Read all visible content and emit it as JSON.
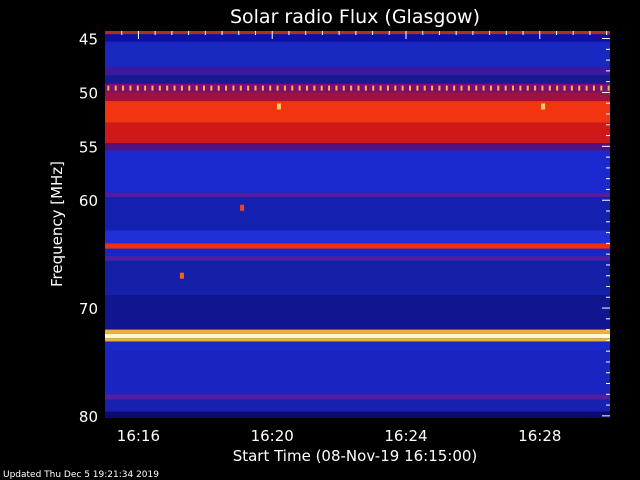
{
  "chart_data": {
    "type": "heatmap",
    "title": "Solar radio Flux (Glasgow)",
    "ylabel": "Frequency [MHz]",
    "xlabel": "Start Time (08-Nov-19 16:15:00)",
    "footer": "Updated Thu Dec  5 19:21:34 2019",
    "x_range_minutes": [
      0,
      15.1
    ],
    "y_range_mhz": [
      44.3,
      80.2
    ],
    "y_inverted": true,
    "x_ticks": [
      {
        "minute": 1,
        "label": "16:16"
      },
      {
        "minute": 5,
        "label": "16:20"
      },
      {
        "minute": 9,
        "label": "16:24"
      },
      {
        "minute": 13,
        "label": "16:28"
      }
    ],
    "y_ticks": [
      {
        "mhz": 45,
        "label": "45"
      },
      {
        "mhz": 50,
        "label": "50"
      },
      {
        "mhz": 55,
        "label": "55"
      },
      {
        "mhz": 60,
        "label": "60"
      },
      {
        "mhz": 70,
        "label": "70"
      },
      {
        "mhz": 80,
        "label": "80"
      }
    ],
    "background_color": "#1a24c8",
    "bands": [
      {
        "from_mhz": 44.3,
        "to_mhz": 44.6,
        "color": "#b0301a"
      },
      {
        "from_mhz": 44.6,
        "to_mhz": 45.3,
        "color": "#1010a0"
      },
      {
        "from_mhz": 45.3,
        "to_mhz": 47.6,
        "color": "#1828c0"
      },
      {
        "from_mhz": 47.6,
        "to_mhz": 48.4,
        "color": "#3a1aa0"
      },
      {
        "from_mhz": 48.4,
        "to_mhz": 49.2,
        "color": "#1a1890"
      },
      {
        "from_mhz": 49.2,
        "to_mhz": 50.0,
        "color": "#7a1070"
      },
      {
        "from_mhz": 50.0,
        "to_mhz": 50.8,
        "color": "#a01040"
      },
      {
        "from_mhz": 50.8,
        "to_mhz": 52.8,
        "color": "#f23510"
      },
      {
        "from_mhz": 52.8,
        "to_mhz": 54.7,
        "color": "#d01818"
      },
      {
        "from_mhz": 54.7,
        "to_mhz": 55.4,
        "color": "#501280"
      },
      {
        "from_mhz": 55.4,
        "to_mhz": 59.3,
        "color": "#1a28d0"
      },
      {
        "from_mhz": 59.3,
        "to_mhz": 59.7,
        "color": "#5a1aa0"
      },
      {
        "from_mhz": 59.7,
        "to_mhz": 62.8,
        "color": "#1420b0"
      },
      {
        "from_mhz": 62.8,
        "to_mhz": 64.0,
        "color": "#2030d8"
      },
      {
        "from_mhz": 64.0,
        "to_mhz": 64.5,
        "color": "#f03010"
      },
      {
        "from_mhz": 64.5,
        "to_mhz": 65.2,
        "color": "#1a26c4"
      },
      {
        "from_mhz": 65.2,
        "to_mhz": 65.6,
        "color": "#5020a0"
      },
      {
        "from_mhz": 65.6,
        "to_mhz": 68.8,
        "color": "#1420a8"
      },
      {
        "from_mhz": 68.8,
        "to_mhz": 72.0,
        "color": "#101690"
      },
      {
        "from_mhz": 72.0,
        "to_mhz": 72.4,
        "color": "#f0b030"
      },
      {
        "from_mhz": 72.4,
        "to_mhz": 72.8,
        "color": "#fff8d8"
      },
      {
        "from_mhz": 72.8,
        "to_mhz": 73.1,
        "color": "#f0b030"
      },
      {
        "from_mhz": 73.1,
        "to_mhz": 74.0,
        "color": "#1a28c8"
      },
      {
        "from_mhz": 74.0,
        "to_mhz": 78.0,
        "color": "#1a24c0"
      },
      {
        "from_mhz": 78.0,
        "to_mhz": 78.5,
        "color": "#5020a0"
      },
      {
        "from_mhz": 78.5,
        "to_mhz": 79.6,
        "color": "#1820b0"
      },
      {
        "from_mhz": 79.6,
        "to_mhz": 80.2,
        "color": "#0a0a70"
      }
    ],
    "dotted_line": {
      "mhz": 49.6,
      "color": "#ffb040",
      "spacing_minutes": 0.22
    },
    "hot_spots": [
      {
        "minute": 5.2,
        "mhz": 51.3,
        "color": "#ffd060"
      },
      {
        "minute": 13.1,
        "mhz": 51.3,
        "color": "#ffd060"
      },
      {
        "minute": 2.3,
        "mhz": 67.0,
        "color": "#ff6020"
      },
      {
        "minute": 4.1,
        "mhz": 60.7,
        "color": "#ff4020"
      }
    ]
  }
}
